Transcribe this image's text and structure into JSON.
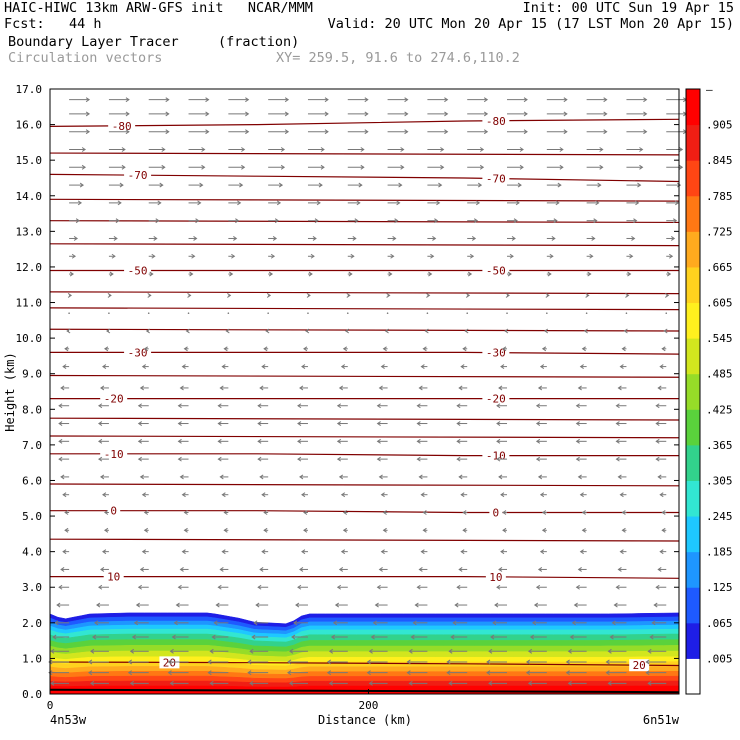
{
  "header": {
    "line1_left": "HAIC-HIWC 13km ARW-GFS init   NCAR/MMM",
    "line1_right": "Init: 00 UTC Sun 19 Apr 15",
    "line2_left": "Fcst:   44 h",
    "line2_right": "Valid: 20 UTC Mon 20 Apr 15 (17 LST Mon 20 Apr 15)",
    "field_name": "Boundary Layer Tracer",
    "field_units": "(fraction)",
    "overlay_name": "Circulation vectors",
    "cross_section": "XY= 259.5, 91.6 to 274.6,110.2"
  },
  "chart_data": {
    "type": "heatmap",
    "xlabel": "Distance (km)",
    "ylabel": "Height (km)",
    "xlim": [
      0,
      395
    ],
    "ylim": [
      0,
      17
    ],
    "x_ticks": [
      {
        "v": 0,
        "label": "0"
      },
      {
        "v": 200,
        "label": "200"
      }
    ],
    "x_end_labels": {
      "left": "4n53w",
      "right": "6n51w"
    },
    "y_ticks": [
      "0.0",
      "1.0",
      "2.0",
      "3.0",
      "4.0",
      "5.0",
      "6.0",
      "7.0",
      "8.0",
      "9.0",
      "10.0",
      "11.0",
      "12.0",
      "13.0",
      "14.0",
      "15.0",
      "16.0",
      "17.0"
    ],
    "colorbar": {
      "labels": [
        ".005",
        ".065",
        ".125",
        ".185",
        ".245",
        ".305",
        ".365",
        ".425",
        ".485",
        ".545",
        ".605",
        ".665",
        ".725",
        ".785",
        ".845",
        ".905"
      ],
      "top_label": "–",
      "colors": [
        "#ffffff",
        "#1e1ee6",
        "#1e5aff",
        "#1e96ff",
        "#1ec8ff",
        "#32e6d2",
        "#32d28c",
        "#5ad23c",
        "#96dc28",
        "#d2e61e",
        "#fff01e",
        "#ffd21e",
        "#ffaa1e",
        "#ff7814",
        "#ff4614",
        "#f01e14",
        "#ff0000"
      ]
    },
    "tracer_profile": {
      "x": [
        0,
        8,
        25,
        50,
        100,
        120,
        128,
        150,
        160,
        200,
        250,
        300,
        350,
        395
      ],
      "top_km": [
        2.25,
        2.1,
        2.25,
        2.28,
        2.28,
        2.12,
        2.02,
        1.97,
        2.25,
        2.25,
        2.25,
        2.25,
        2.25,
        2.28
      ]
    },
    "temperature_contours": [
      {
        "value": 20,
        "label": "20",
        "y": [
          0.9,
          0.88,
          0.85,
          0.8
        ],
        "label_x": [
          75,
          370
        ]
      },
      {
        "value": 10,
        "label": "10",
        "y": [
          3.3,
          3.3,
          3.3,
          3.25
        ],
        "label_x": [
          40,
          280
        ]
      },
      {
        "value": 0,
        "label": "0",
        "y": [
          5.15,
          5.15,
          5.1,
          5.1
        ],
        "label_x": [
          40,
          280
        ]
      },
      {
        "value": -10,
        "label": "-10",
        "y": [
          6.75,
          6.75,
          6.7,
          6.7
        ],
        "label_x": [
          40,
          280
        ]
      },
      {
        "value": -20,
        "label": "-20",
        "y": [
          8.3,
          8.3,
          8.3,
          8.3
        ],
        "label_x": [
          40,
          280
        ]
      },
      {
        "value": -30,
        "label": "-30",
        "y": [
          9.6,
          9.6,
          9.6,
          9.55
        ],
        "label_x": [
          55,
          280
        ]
      },
      {
        "value": -50,
        "label": "-50",
        "y": [
          11.9,
          11.9,
          11.9,
          11.9
        ],
        "label_x": [
          55,
          280
        ]
      },
      {
        "value": -70,
        "label": "-70",
        "y": [
          14.6,
          14.55,
          14.5,
          14.4
        ],
        "label_x": [
          55,
          280
        ]
      },
      {
        "value": -80,
        "label": "-80",
        "y": [
          15.95,
          16.0,
          16.1,
          16.15
        ],
        "label_x": [
          45,
          280
        ]
      }
    ],
    "isotherm_lines": [
      4.35,
      5.9,
      7.25,
      7.75,
      8.95,
      10.25,
      10.85,
      11.3,
      12.65,
      13.3,
      13.9,
      15.2
    ],
    "wind_vectors": {
      "x": [
        0,
        25,
        50,
        75,
        100,
        125,
        150,
        175,
        200,
        225,
        250,
        275,
        300,
        325,
        350,
        375
      ],
      "rows": [
        {
          "z": 16.7,
          "u": 1.0
        },
        {
          "z": 16.3,
          "u": 1.0
        },
        {
          "z": 15.8,
          "u": 1.0
        },
        {
          "z": 15.3,
          "u": 0.8
        },
        {
          "z": 14.8,
          "u": 0.8
        },
        {
          "z": 14.3,
          "u": 0.7
        },
        {
          "z": 13.8,
          "u": 0.6
        },
        {
          "z": 13.3,
          "u": 0.5
        },
        {
          "z": 12.8,
          "u": 0.4
        },
        {
          "z": 12.3,
          "u": 0.3
        },
        {
          "z": 11.8,
          "u": 0.2
        },
        {
          "z": 11.2,
          "u": 0.1
        },
        {
          "z": 10.7,
          "u": 0.05
        },
        {
          "z": 10.2,
          "u": -0.1
        },
        {
          "z": 9.7,
          "u": -0.2
        },
        {
          "z": 9.2,
          "u": -0.3
        },
        {
          "z": 8.6,
          "u": -0.4
        },
        {
          "z": 8.1,
          "u": -0.5
        },
        {
          "z": 7.6,
          "u": -0.5
        },
        {
          "z": 7.1,
          "u": -0.5
        },
        {
          "z": 6.6,
          "u": -0.5
        },
        {
          "z": 6.1,
          "u": -0.4
        },
        {
          "z": 5.6,
          "u": -0.3
        },
        {
          "z": 5.1,
          "u": -0.2
        },
        {
          "z": 4.6,
          "u": -0.2
        },
        {
          "z": 4.0,
          "u": -0.3
        },
        {
          "z": 3.5,
          "u": -0.4
        },
        {
          "z": 3.0,
          "u": -0.5
        },
        {
          "z": 2.5,
          "u": -0.6
        },
        {
          "z": 2.0,
          "u": -0.7
        },
        {
          "z": 1.6,
          "u": -0.8
        },
        {
          "z": 1.2,
          "u": -0.9
        },
        {
          "z": 0.9,
          "u": -1.0
        },
        {
          "z": 0.6,
          "u": -1.0
        },
        {
          "z": 0.3,
          "u": -0.9
        }
      ]
    },
    "colors": {
      "contour": "#800000",
      "vector": "#787878",
      "frame": "#000000"
    }
  }
}
